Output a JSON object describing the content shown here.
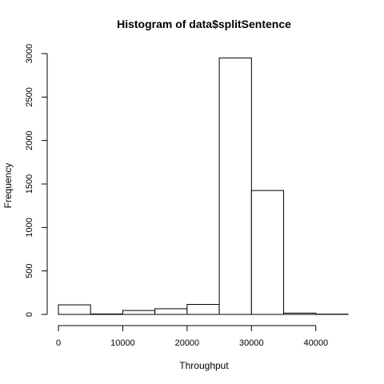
{
  "chart_data": {
    "type": "bar",
    "title": "Histogram of data$splitSentence",
    "xlabel": "Throughput",
    "ylabel": "Frequency",
    "bins": [
      {
        "from": 0,
        "to": 5000,
        "count": 110
      },
      {
        "from": 5000,
        "to": 10000,
        "count": 5
      },
      {
        "from": 10000,
        "to": 15000,
        "count": 45
      },
      {
        "from": 15000,
        "to": 20000,
        "count": 65
      },
      {
        "from": 20000,
        "to": 25000,
        "count": 115
      },
      {
        "from": 25000,
        "to": 30000,
        "count": 2950
      },
      {
        "from": 30000,
        "to": 35000,
        "count": 1425
      },
      {
        "from": 35000,
        "to": 40000,
        "count": 15
      },
      {
        "from": 40000,
        "to": 45000,
        "count": 3
      }
    ],
    "xlim": [
      0,
      45000
    ],
    "ylim": [
      0,
      3000
    ],
    "xticks": [
      0,
      10000,
      20000,
      30000,
      40000
    ],
    "yticks": [
      0,
      500,
      1000,
      1500,
      2000,
      2500,
      3000
    ],
    "grid": false
  }
}
